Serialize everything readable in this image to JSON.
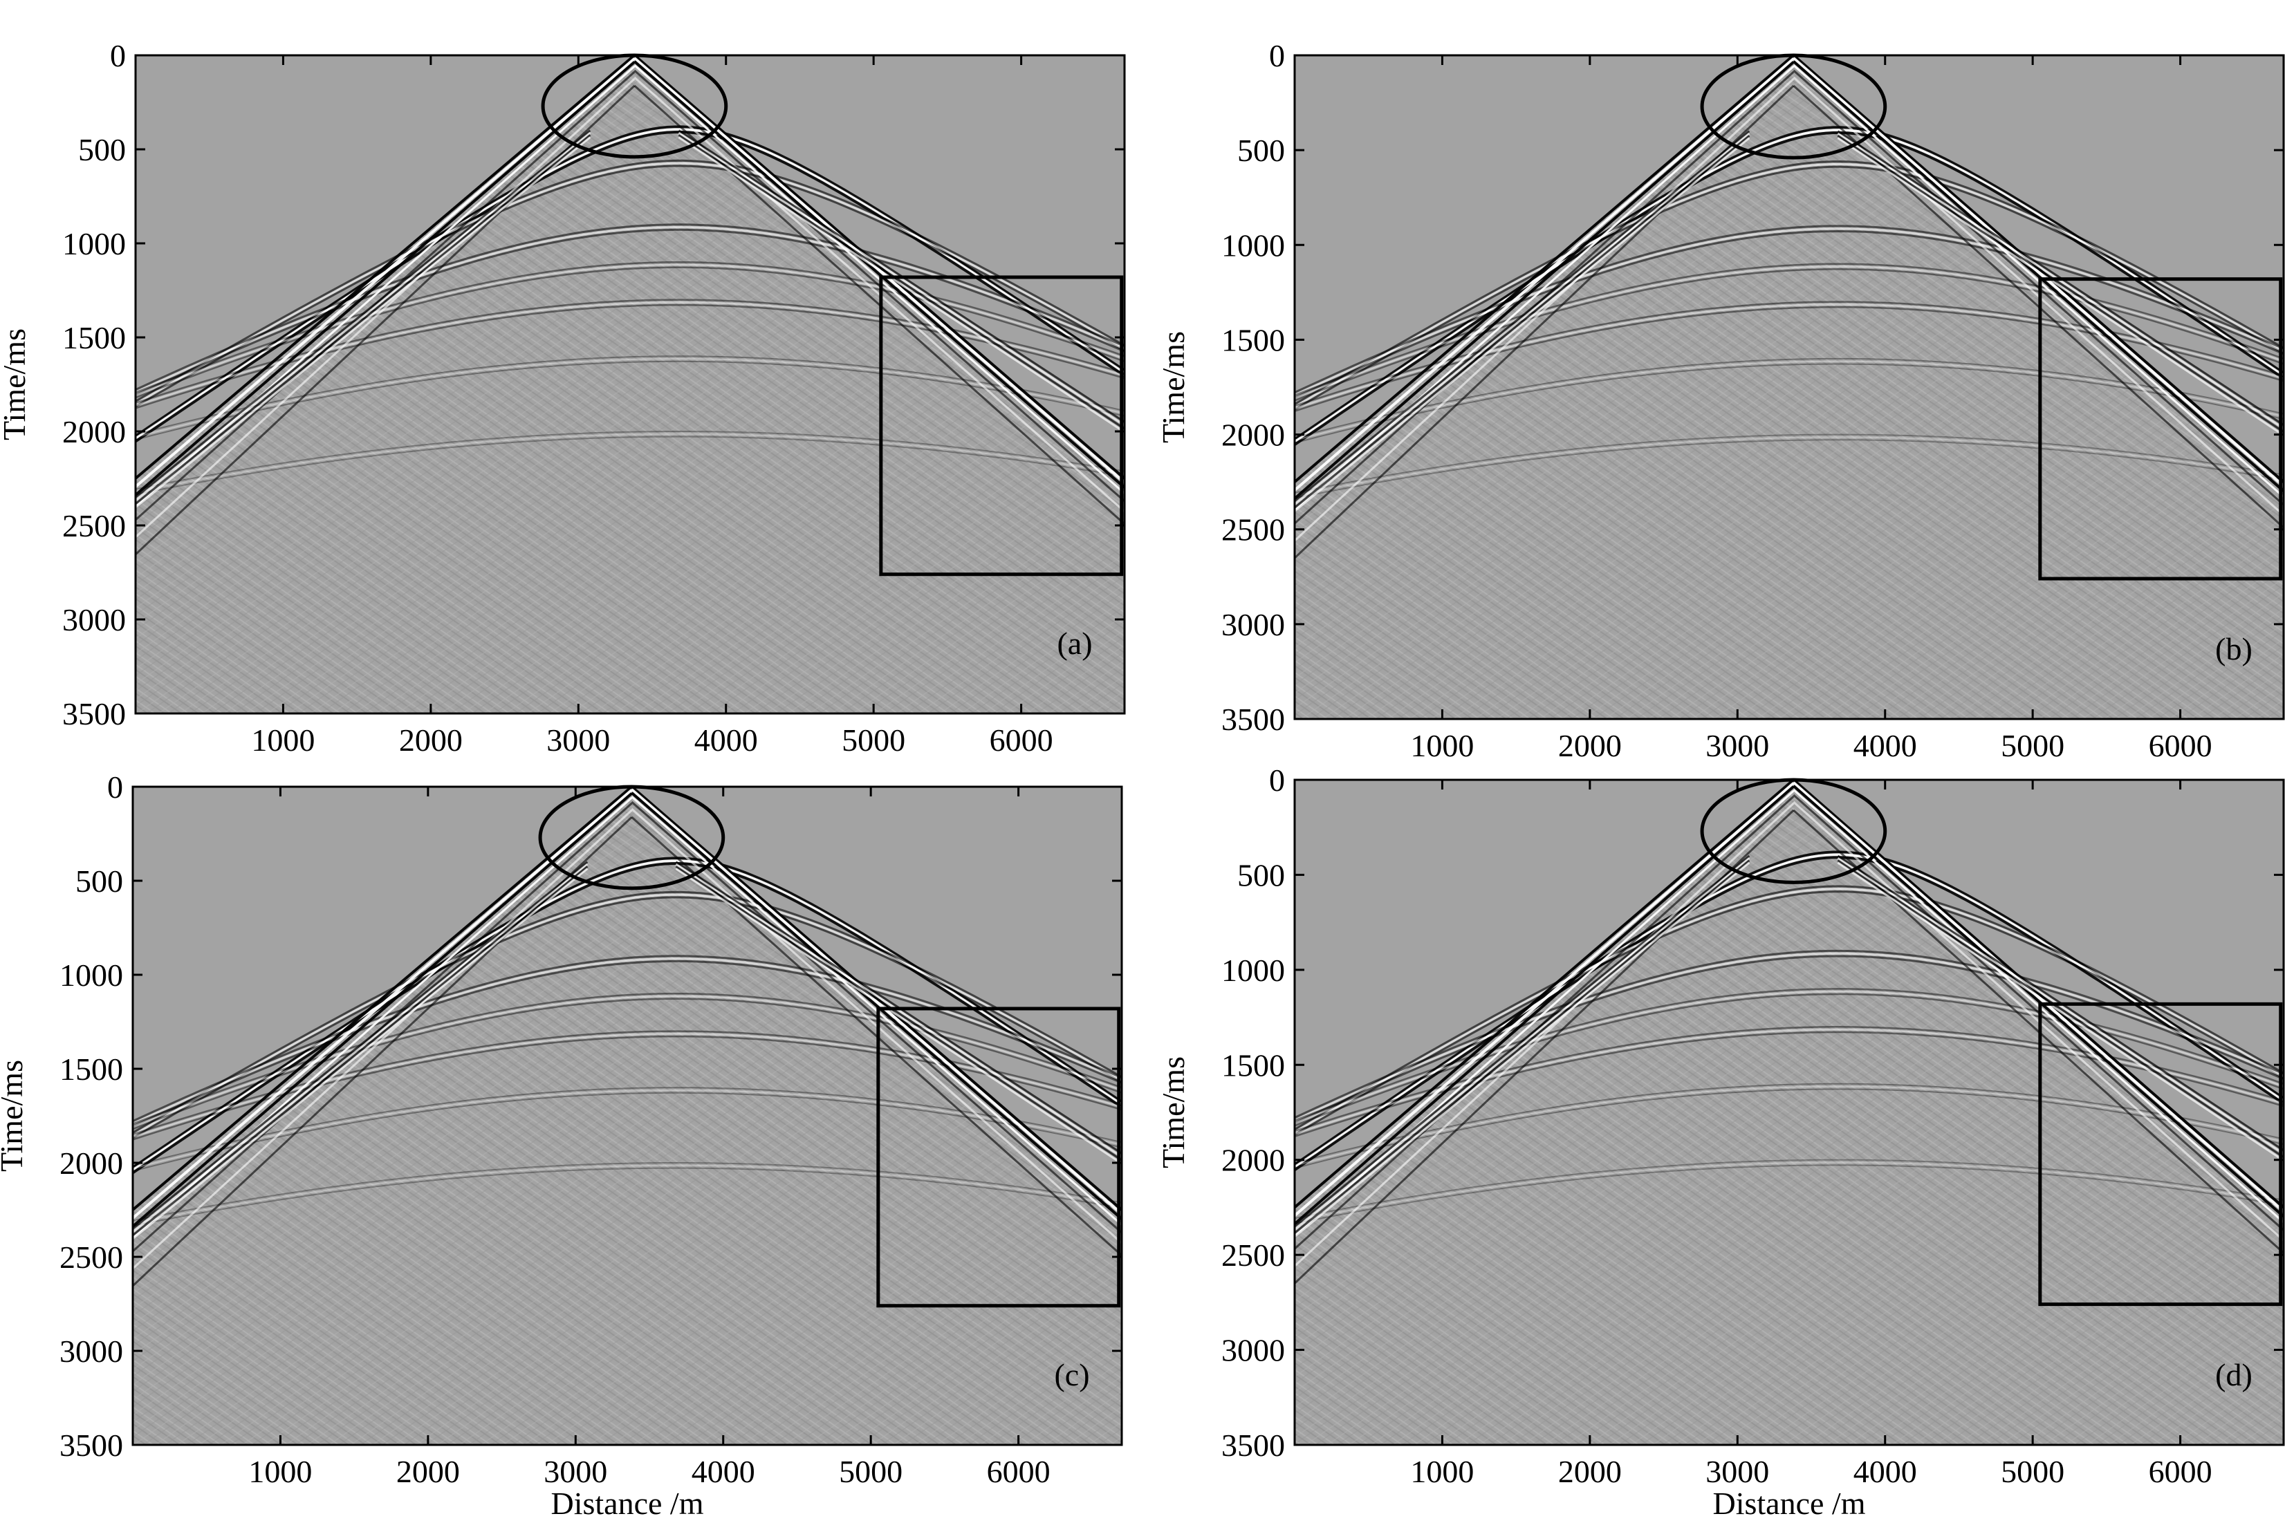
{
  "chart_data": [
    {
      "type": "heatmap",
      "panel_label": "(a)",
      "xlabel": "",
      "ylabel": "Time/ms",
      "xlim": [
        0,
        6700
      ],
      "ylim": [
        3500,
        0
      ],
      "xticks": [
        1000,
        2000,
        3000,
        4000,
        5000,
        6000
      ],
      "yticks": [
        0,
        500,
        1000,
        1500,
        2000,
        2500,
        3000,
        3500
      ],
      "apex": {
        "x": 3380,
        "t": 0
      },
      "events_right_edge_time_ms": [
        2250,
        1950
      ],
      "events_left_edge_time_ms": [
        2250,
        2350
      ],
      "annotations": {
        "ellipse": {
          "cx": 3380,
          "cy": 270,
          "rx": 620,
          "ry": 270
        },
        "rectangle": {
          "x0": 5050,
          "x1": 6680,
          "t0": 1180,
          "t1": 2760
        }
      }
    },
    {
      "type": "heatmap",
      "panel_label": "(b)",
      "xlabel": "",
      "ylabel": "Time/ms",
      "xlim": [
        0,
        6700
      ],
      "ylim": [
        3500,
        0
      ],
      "xticks": [
        1000,
        2000,
        3000,
        4000,
        5000,
        6000
      ],
      "yticks": [
        0,
        500,
        1000,
        1500,
        2000,
        2500,
        3000,
        3500
      ],
      "apex": {
        "x": 3380,
        "t": 0
      },
      "events_right_edge_time_ms": [
        2250,
        1950
      ],
      "events_left_edge_time_ms": [
        2250,
        2350
      ],
      "annotations": {
        "ellipse": {
          "cx": 3380,
          "cy": 270,
          "rx": 620,
          "ry": 270
        },
        "rectangle": {
          "x0": 5050,
          "x1": 6680,
          "t0": 1180,
          "t1": 2760
        }
      }
    },
    {
      "type": "heatmap",
      "panel_label": "(c)",
      "xlabel": "Distance /m",
      "ylabel": "Time/ms",
      "xlim": [
        0,
        6700
      ],
      "ylim": [
        3500,
        0
      ],
      "xticks": [
        1000,
        2000,
        3000,
        4000,
        5000,
        6000
      ],
      "yticks": [
        0,
        500,
        1000,
        1500,
        2000,
        2500,
        3000,
        3500
      ],
      "apex": {
        "x": 3380,
        "t": 0
      },
      "events_right_edge_time_ms": [
        2250,
        1950
      ],
      "events_left_edge_time_ms": [
        2250,
        2350
      ],
      "annotations": {
        "ellipse": {
          "cx": 3380,
          "cy": 270,
          "rx": 620,
          "ry": 270
        },
        "rectangle": {
          "x0": 5050,
          "x1": 6680,
          "t0": 1180,
          "t1": 2760
        }
      }
    },
    {
      "type": "heatmap",
      "panel_label": "(d)",
      "xlabel": "Distance /m",
      "ylabel": "Time/ms",
      "xlim": [
        0,
        6700
      ],
      "ylim": [
        3500,
        0
      ],
      "xticks": [
        1000,
        2000,
        3000,
        4000,
        5000,
        6000
      ],
      "yticks": [
        0,
        500,
        1000,
        1500,
        2000,
        2500,
        3000,
        3500
      ],
      "apex": {
        "x": 3380,
        "t": 0
      },
      "events_right_edge_time_ms": [
        2250,
        1950
      ],
      "events_left_edge_time_ms": [
        2250,
        2350
      ],
      "annotations": {
        "ellipse": {
          "cx": 3380,
          "cy": 270,
          "rx": 620,
          "ry": 270
        },
        "rectangle": {
          "x0": 5050,
          "x1": 6680,
          "t0": 1180,
          "t1": 2760
        }
      }
    }
  ],
  "colors": {
    "background": "#a3a3a3",
    "event_dark": "#000000",
    "event_light": "#ffffff",
    "frame": "#000000"
  }
}
